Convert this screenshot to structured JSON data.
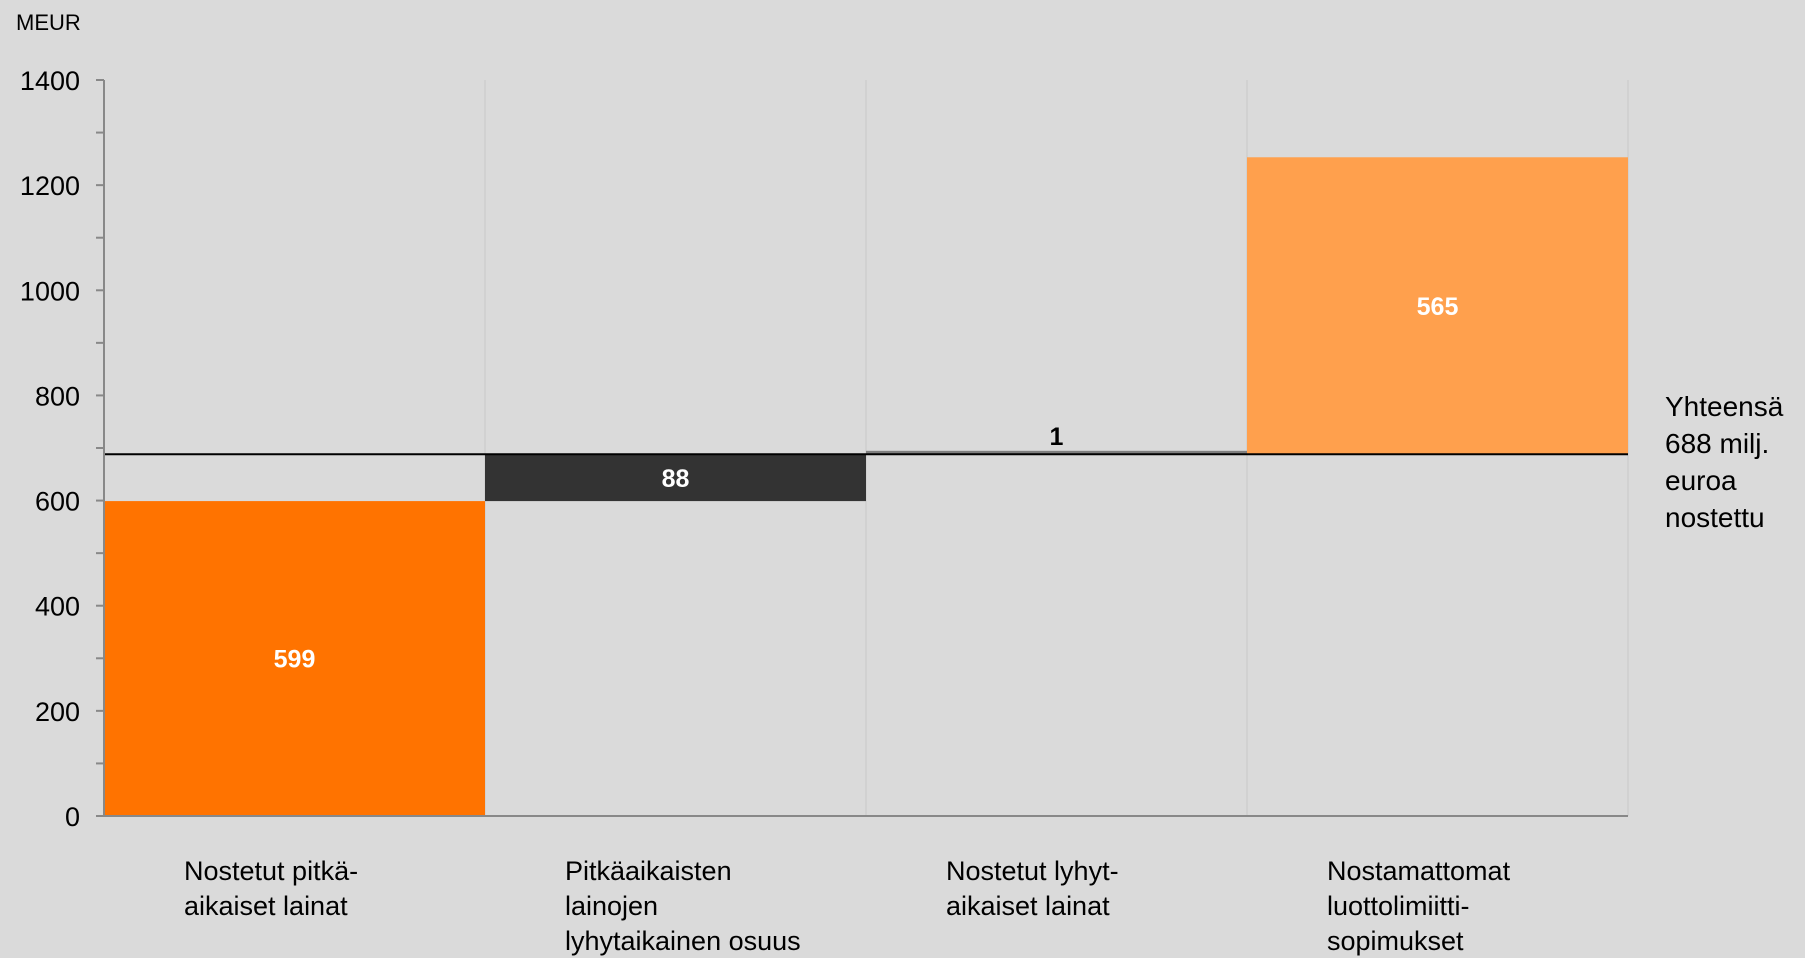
{
  "chart_data": {
    "type": "bar",
    "subtype": "waterfall",
    "unit_label": "MEUR",
    "ylim": [
      0,
      1400
    ],
    "yticks": [
      "0",
      "200",
      "400",
      "600",
      "800",
      "1000",
      "1200",
      "1400"
    ],
    "grid": "vertical category separators",
    "categories": [
      [
        "Nostetut pitkä-",
        "aikaiset lainat"
      ],
      [
        "Pitkäaikaisten",
        "lainojen",
        "lyhytaikainen osuus"
      ],
      [
        "Nostetut lyhyt-",
        "aikaiset lainat"
      ],
      [
        "Nostamattomat",
        "luottolimiitti-",
        "sopimukset"
      ]
    ],
    "bars": [
      {
        "start": 0,
        "value": 599,
        "label": "599",
        "color": "#ff7300",
        "label_color": "#ffffff"
      },
      {
        "start": 599,
        "value": 88,
        "label": "88",
        "color": "#333333",
        "label_color": "#ffffff"
      },
      {
        "start": 687,
        "value": 1,
        "label": "1",
        "color": "#7f7f7f",
        "label_color": "#000000"
      },
      {
        "start": 688,
        "value": 565,
        "label": "565",
        "color": "#ffa04d",
        "label_color": "#ffffff"
      }
    ],
    "reference_line": {
      "value": 688,
      "note": [
        "Yhteensä",
        "688 milj.",
        "euroa",
        "nostettu"
      ]
    },
    "colors": {
      "background": "#dadada",
      "axis": "#888888",
      "grid": "#c8c8c8",
      "reference_line": "#000000"
    }
  }
}
